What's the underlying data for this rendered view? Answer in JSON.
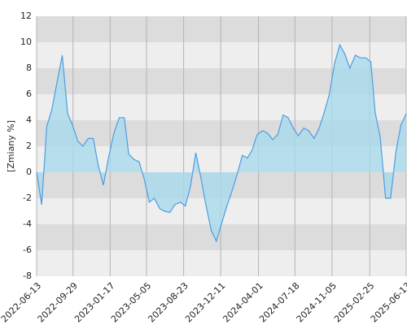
{
  "chart_data": {
    "type": "area",
    "ylabel": "[Zmiany %]",
    "x": [
      "2022-06-13",
      "2022-06-28",
      "2022-07-13",
      "2022-07-28",
      "2022-08-13",
      "2022-08-28",
      "2022-09-13",
      "2022-09-28",
      "2022-10-13",
      "2022-10-28",
      "2022-11-13",
      "2022-11-28",
      "2022-12-13",
      "2022-12-28",
      "2023-01-13",
      "2023-01-28",
      "2023-02-13",
      "2023-02-28",
      "2023-03-13",
      "2023-03-28",
      "2023-04-13",
      "2023-04-28",
      "2023-05-13",
      "2023-05-28",
      "2023-06-13",
      "2023-06-28",
      "2023-07-13",
      "2023-07-28",
      "2023-08-13",
      "2023-08-28",
      "2023-09-13",
      "2023-09-28",
      "2023-10-13",
      "2023-10-28",
      "2023-11-13",
      "2023-11-28",
      "2023-12-13",
      "2023-12-28",
      "2024-01-13",
      "2024-01-28",
      "2024-02-13",
      "2024-02-28",
      "2024-03-13",
      "2024-03-28",
      "2024-04-13",
      "2024-04-28",
      "2024-05-13",
      "2024-05-28",
      "2024-06-13",
      "2024-06-28",
      "2024-07-13",
      "2024-07-28",
      "2024-08-13",
      "2024-08-28",
      "2024-09-13",
      "2024-09-28",
      "2024-10-13",
      "2024-10-28",
      "2024-11-13",
      "2024-11-28",
      "2024-12-13",
      "2024-12-28",
      "2025-01-13",
      "2025-01-28",
      "2025-02-13",
      "2025-02-28",
      "2025-03-13",
      "2025-03-28",
      "2025-04-13",
      "2025-04-28",
      "2025-05-13",
      "2025-05-28",
      "2025-06-13"
    ],
    "series": [
      {
        "name": "Zmiany",
        "color": "#4d9de0",
        "fill": "#a9d9ec",
        "values": [
          0,
          -2.5,
          3.5,
          4.8,
          7,
          9,
          4.5,
          3.6,
          2.4,
          2,
          2.6,
          2.6,
          0.5,
          -1,
          1.2,
          3,
          4.2,
          4.2,
          1.4,
          1,
          0.8,
          -0.5,
          -2.3,
          -2,
          -2.8,
          -3,
          -3.1,
          -2.5,
          -2.3,
          -2.6,
          -1,
          1.5,
          -0.4,
          -2.5,
          -4.5,
          -5.3,
          -4,
          -2.7,
          -1.5,
          -0.2,
          1.3,
          1.1,
          1.7,
          2.9,
          3.2,
          3,
          2.5,
          2.9,
          4.4,
          4.2,
          3.4,
          2.8,
          3.4,
          3.2,
          2.6,
          3.4,
          4.6,
          6,
          8.4,
          9.8,
          9.1,
          8,
          9,
          8.8,
          8.8,
          8.5,
          4.6,
          2.7,
          -2,
          -2,
          1.5,
          3.6,
          4.5
        ]
      }
    ],
    "xlim": [
      "2022-06-13",
      "2025-06-13"
    ],
    "xticks": [
      "2022-06-13",
      "2022-09-29",
      "2023-01-17",
      "2023-05-05",
      "2023-08-23",
      "2023-12-11",
      "2024-04-01",
      "2024-07-18",
      "2024-11-05",
      "2025-02-25",
      "2025-06-13"
    ],
    "ylim": [
      -8,
      12
    ],
    "yticks": [
      -8,
      -6,
      -4,
      -2,
      0,
      2,
      4,
      6,
      8,
      10,
      12
    ],
    "band_colors": [
      "#eeeeee",
      "#dcdcdc"
    ],
    "grid_color": "#b4b4b4",
    "grid": true
  }
}
